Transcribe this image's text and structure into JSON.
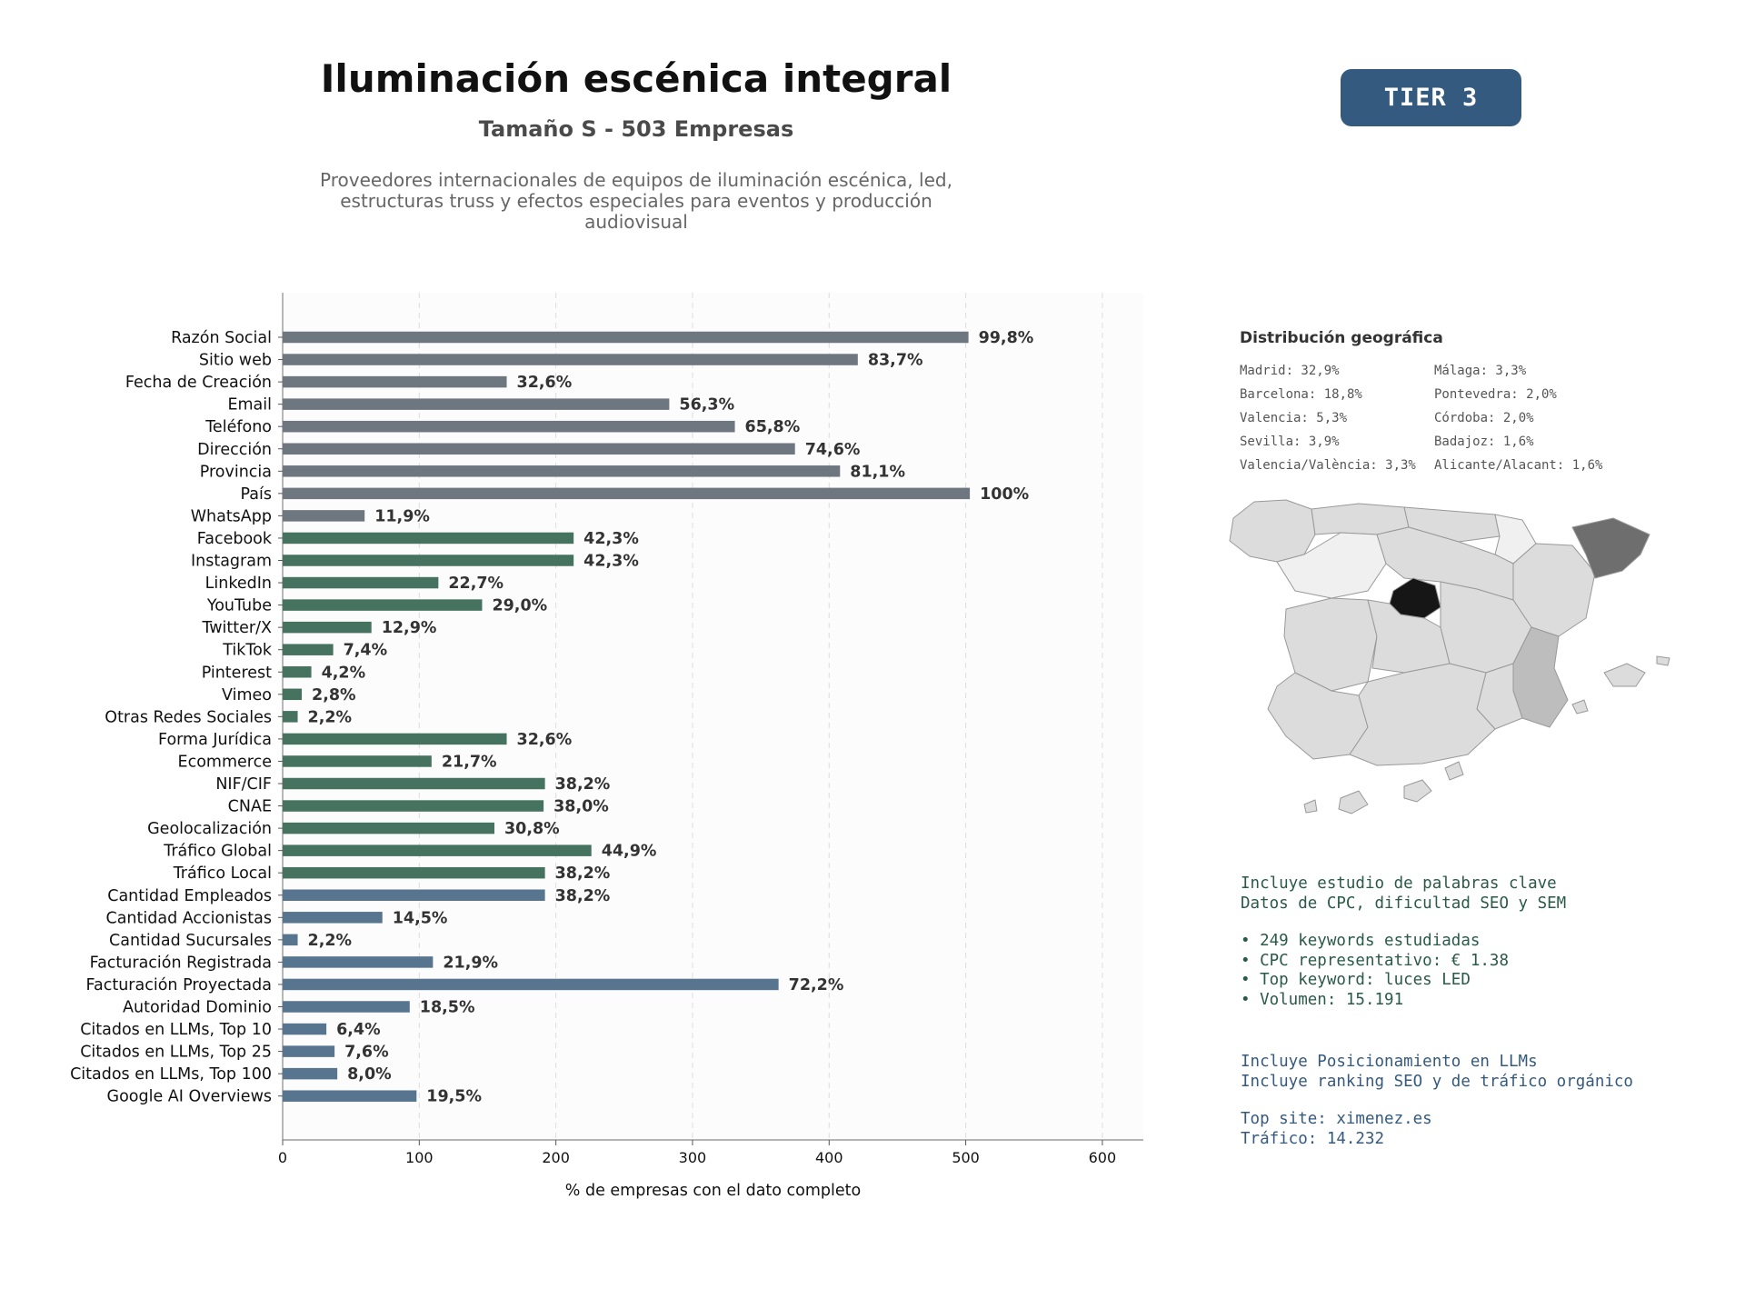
{
  "header": {
    "title": "Iluminación escénica integral",
    "subtitle": "Tamaño S - 503 Empresas",
    "description": "Proveedores internacionales de equipos de iluminación escénica, led, estructuras truss y efectos especiales para eventos y producción audiovisual",
    "tier": "TIER 3"
  },
  "chart_data": {
    "type": "bar",
    "orientation": "horizontal",
    "categories": [
      "Razón Social",
      "Sitio web",
      "Fecha de Creación",
      "Email",
      "Teléfono",
      "Dirección",
      "Provincia",
      "País",
      "WhatsApp",
      "Facebook",
      "Instagram",
      "LinkedIn",
      "YouTube",
      "Twitter/X",
      "TikTok",
      "Pinterest",
      "Vimeo",
      "Otras Redes Sociales",
      "Forma Jurídica",
      "Ecommerce",
      "NIF/CIF",
      "CNAE",
      "Geolocalización",
      "Tráfico Global",
      "Tráfico Local",
      "Cantidad Empleados",
      "Cantidad Accionistas",
      "Cantidad Sucursales",
      "Facturación Registrada",
      "Facturación Proyectada",
      "Autoridad Dominio",
      "Citados en LLMs, Top 10",
      "Citados en LLMs, Top 25",
      "Citados en LLMs, Top 100",
      "Google AI Overviews"
    ],
    "values": [
      502,
      421,
      164,
      283,
      331,
      375,
      408,
      503,
      60,
      213,
      213,
      114,
      146,
      65,
      37,
      21,
      14,
      11,
      164,
      109,
      192,
      191,
      155,
      226,
      192,
      192,
      73,
      11,
      110,
      363,
      93,
      32,
      38,
      40,
      98
    ],
    "labels": [
      "99,8%",
      "83,7%",
      "32,6%",
      "56,3%",
      "65,8%",
      "74,6%",
      "81,1%",
      "100%",
      "11,9%",
      "42,3%",
      "42,3%",
      "22,7%",
      "29,0%",
      "12,9%",
      "7,4%",
      "4,2%",
      "2,8%",
      "2,2%",
      "32,6%",
      "21,7%",
      "38,2%",
      "38,0%",
      "30,8%",
      "44,9%",
      "38,2%",
      "38,2%",
      "14,5%",
      "2,2%",
      "21,9%",
      "72,2%",
      "18,5%",
      "6,4%",
      "7,6%",
      "8,0%",
      "19,5%"
    ],
    "groups": [
      0,
      0,
      0,
      0,
      0,
      0,
      0,
      0,
      0,
      1,
      1,
      1,
      1,
      1,
      1,
      1,
      1,
      1,
      1,
      1,
      1,
      1,
      1,
      1,
      1,
      2,
      2,
      2,
      2,
      2,
      2,
      2,
      2,
      2,
      2
    ],
    "group_colors": [
      "#6e7780",
      "#46735f",
      "#587590"
    ],
    "xlabel": "% de empresas con el dato completo",
    "xlim": [
      0,
      630
    ],
    "xticks": [
      0,
      100,
      200,
      300,
      400,
      500,
      600
    ],
    "grid": true
  },
  "geo": {
    "title": "Distribución geográfica",
    "items": [
      "Madrid: 32,9%",
      "Málaga: 3,3%",
      "Barcelona: 18,8%",
      "Pontevedra: 2,0%",
      "Valencia: 5,3%",
      "Córdoba: 2,0%",
      "Sevilla: 3,9%",
      "Badajoz: 1,6%",
      "Valencia/València: 3,3%",
      "Alicante/Alacant: 1,6%"
    ]
  },
  "keywords": {
    "line1": "Incluye estudio de palabras clave",
    "line2": "Datos de CPC, dificultad SEO y SEM",
    "bullet1": "• 249 keywords estudiadas",
    "bullet2": "• CPC representativo: € 1.38",
    "bullet3": "• Top keyword: luces LED",
    "bullet4": "• Volumen: 15.191"
  },
  "llm": {
    "line1": "Incluye Posicionamiento en LLMs",
    "line2": "Incluye ranking SEO y de tráfico orgánico",
    "top_site": "Top site: ximenez.es",
    "traffic": "Tráfico: 14.232"
  },
  "map_colors": {
    "madrid": "#161616",
    "barcelona": "#6e6e6e",
    "valencia": "#bdbdbd",
    "others": "#dcdcdc",
    "light": "#f0f0f0",
    "stroke": "#999999"
  }
}
